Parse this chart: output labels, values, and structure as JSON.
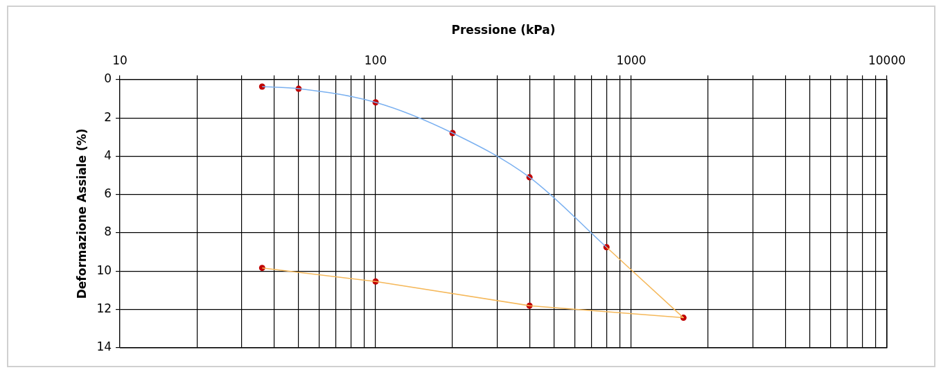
{
  "chart_data": {
    "type": "line",
    "xlabel": "Pressione (kPa)",
    "ylabel": "Deformazione Assiale (%)",
    "log": "x",
    "grid": true,
    "xlim": [
      10,
      10000
    ],
    "xticks": [
      10,
      {
        "value": 20,
        "label": null
      },
      {
        "value": 30,
        "label": null
      },
      {
        "value": 40,
        "label": null
      },
      {
        "value": 50,
        "label": null
      },
      {
        "value": 60,
        "label": null
      },
      {
        "value": 70,
        "label": null
      },
      {
        "value": 80,
        "label": null
      },
      {
        "value": 90,
        "label": null
      },
      100,
      {
        "value": 200,
        "label": null
      },
      {
        "value": 300,
        "label": null
      },
      {
        "value": 400,
        "label": null
      },
      {
        "value": 500,
        "label": null
      },
      {
        "value": 600,
        "label": null
      },
      {
        "value": 700,
        "label": null
      },
      {
        "value": 800,
        "label": null
      },
      {
        "value": 900,
        "label": null
      },
      1000,
      {
        "value": 2000,
        "label": null
      },
      {
        "value": 3000,
        "label": null
      },
      {
        "value": 4000,
        "label": null
      },
      {
        "value": 5000,
        "label": null
      },
      {
        "value": 6000,
        "label": null
      },
      {
        "value": 7000,
        "label": null
      },
      {
        "value": 8000,
        "label": null
      },
      {
        "value": 9000,
        "label": null
      },
      10000
    ],
    "ylim": [
      14,
      0
    ],
    "yticks": [
      0,
      2,
      4,
      6,
      8,
      10,
      12,
      14
    ],
    "series": [
      {
        "marker": "none",
        "color": "#7ab0f0",
        "x": [
          36,
          50,
          100,
          200,
          400,
          800
        ],
        "values": [
          0.37,
          0.48,
          1.19,
          2.79,
          5.1,
          8.75
        ]
      },
      {
        "marker": "none",
        "color": "#f5b85a",
        "x": [
          800,
          1600,
          400,
          100,
          36
        ],
        "values": [
          8.75,
          12.43,
          11.8,
          10.54,
          9.83
        ]
      },
      {
        "type": "scatter",
        "marker": "circle",
        "color": "#c00000",
        "x": [
          36,
          50,
          100,
          200,
          400,
          800,
          1600,
          400,
          100,
          36
        ],
        "values": [
          0.37,
          0.48,
          1.19,
          2.79,
          5.1,
          8.75,
          12.43,
          11.8,
          10.54,
          9.83
        ]
      }
    ]
  }
}
